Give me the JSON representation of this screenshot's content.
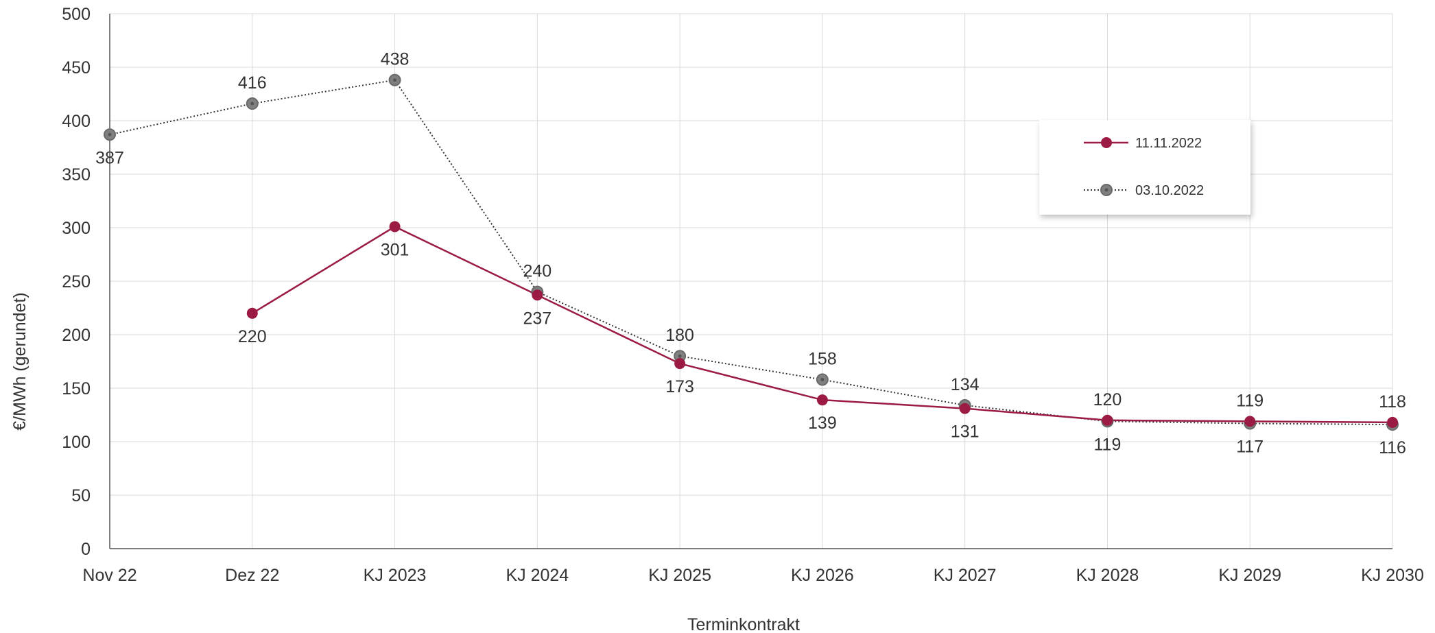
{
  "chart_data": {
    "type": "line",
    "xlabel": "Terminkontrakt",
    "ylabel": "€/MWh (gerundet)",
    "ylim": [
      0,
      500
    ],
    "yticks": [
      0,
      50,
      100,
      150,
      200,
      250,
      300,
      350,
      400,
      450,
      500
    ],
    "grid": true,
    "legend_position": "top-right",
    "categories": [
      "Nov 22",
      "Dez 22",
      "KJ 2023",
      "KJ 2024",
      "KJ 2025",
      "KJ 2026",
      "KJ 2027",
      "KJ 2028",
      "KJ 2029",
      "KJ 2030"
    ],
    "series": [
      {
        "name": "11.11.2022",
        "color": "#9b1b42",
        "style": "solid",
        "values": [
          null,
          220,
          301,
          237,
          173,
          139,
          131,
          120,
          119,
          118
        ]
      },
      {
        "name": "03.10.2022",
        "color": "#808080",
        "style": "dotted",
        "values": [
          387,
          416,
          438,
          240,
          180,
          158,
          134,
          119,
          117,
          116
        ]
      }
    ]
  }
}
